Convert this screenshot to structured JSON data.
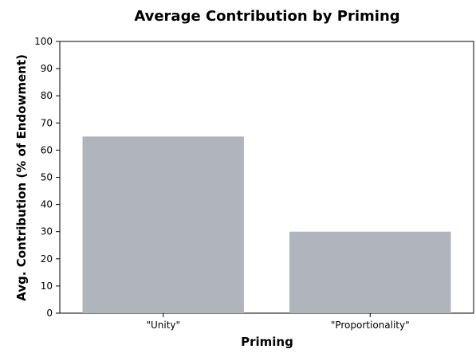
{
  "chart_data": {
    "type": "bar",
    "title": "Average Contribution by Priming",
    "xlabel": "Priming",
    "ylabel": "Avg. Contribution (% of Endowment)",
    "categories": [
      "\"Unity\"",
      "\"Proportionality\""
    ],
    "values": [
      65,
      30
    ],
    "ylim": [
      0,
      100
    ],
    "yticks": [
      0,
      10,
      20,
      30,
      40,
      50,
      60,
      70,
      80,
      90,
      100
    ],
    "grid": false,
    "legend": "none",
    "bar_color": "#b0b4bd"
  }
}
